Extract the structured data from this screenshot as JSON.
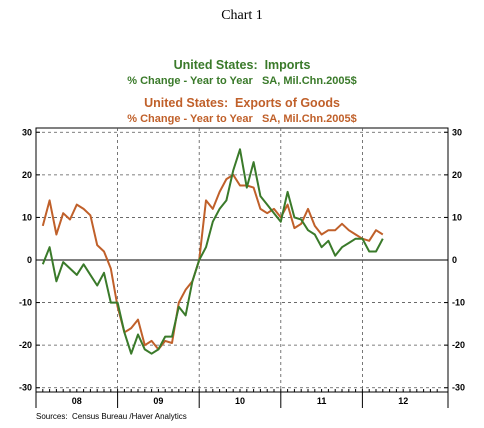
{
  "chart_data": {
    "type": "line",
    "title": "Chart 1",
    "series": [
      {
        "name": "United States:  Imports",
        "subtitle": "% Change - Year to Year   SA, Mil.Chn.2005$",
        "color": "#3a7a2a",
        "values": [
          -1,
          3,
          -5,
          -0.5,
          -2,
          -3.5,
          -1,
          -3.5,
          -6,
          -3,
          -10,
          -10,
          -17,
          -22,
          -17.5,
          -21,
          -22,
          -21,
          -18,
          -18,
          -11,
          -13,
          -5,
          0,
          3,
          9,
          12,
          14,
          21,
          26,
          17,
          23,
          15,
          13,
          11,
          9,
          16,
          10,
          9.5,
          7,
          6,
          3,
          4.5,
          1,
          3,
          4,
          5,
          5,
          2,
          2,
          5
        ]
      },
      {
        "name": "United States:  Exports of Goods",
        "subtitle": "% Change - Year to Year   SA, Mil.Chn.2005$",
        "color": "#c0602a",
        "values": [
          8,
          14,
          6,
          11,
          9.5,
          13,
          12,
          10.5,
          3.5,
          2,
          -2,
          -11,
          -17,
          -16,
          -14,
          -20,
          -19,
          -21,
          -19,
          -19.5,
          -10,
          -7,
          -5,
          0,
          14,
          12,
          16,
          19,
          20,
          17.5,
          17.5,
          17,
          12,
          11,
          12,
          10,
          13,
          7.5,
          8.5,
          12,
          8,
          6,
          7,
          7,
          8.5,
          7,
          6,
          5,
          4.5,
          7,
          6
        ]
      }
    ],
    "x_tick_labels": [
      "08",
      "09",
      "10",
      "11",
      "12"
    ],
    "y_ticks": [
      -30,
      -20,
      -10,
      0,
      10,
      20,
      30
    ],
    "ylim": [
      -31,
      31
    ],
    "grid": true,
    "source": "Sources:  Census Bureau /Haver Analytics"
  }
}
